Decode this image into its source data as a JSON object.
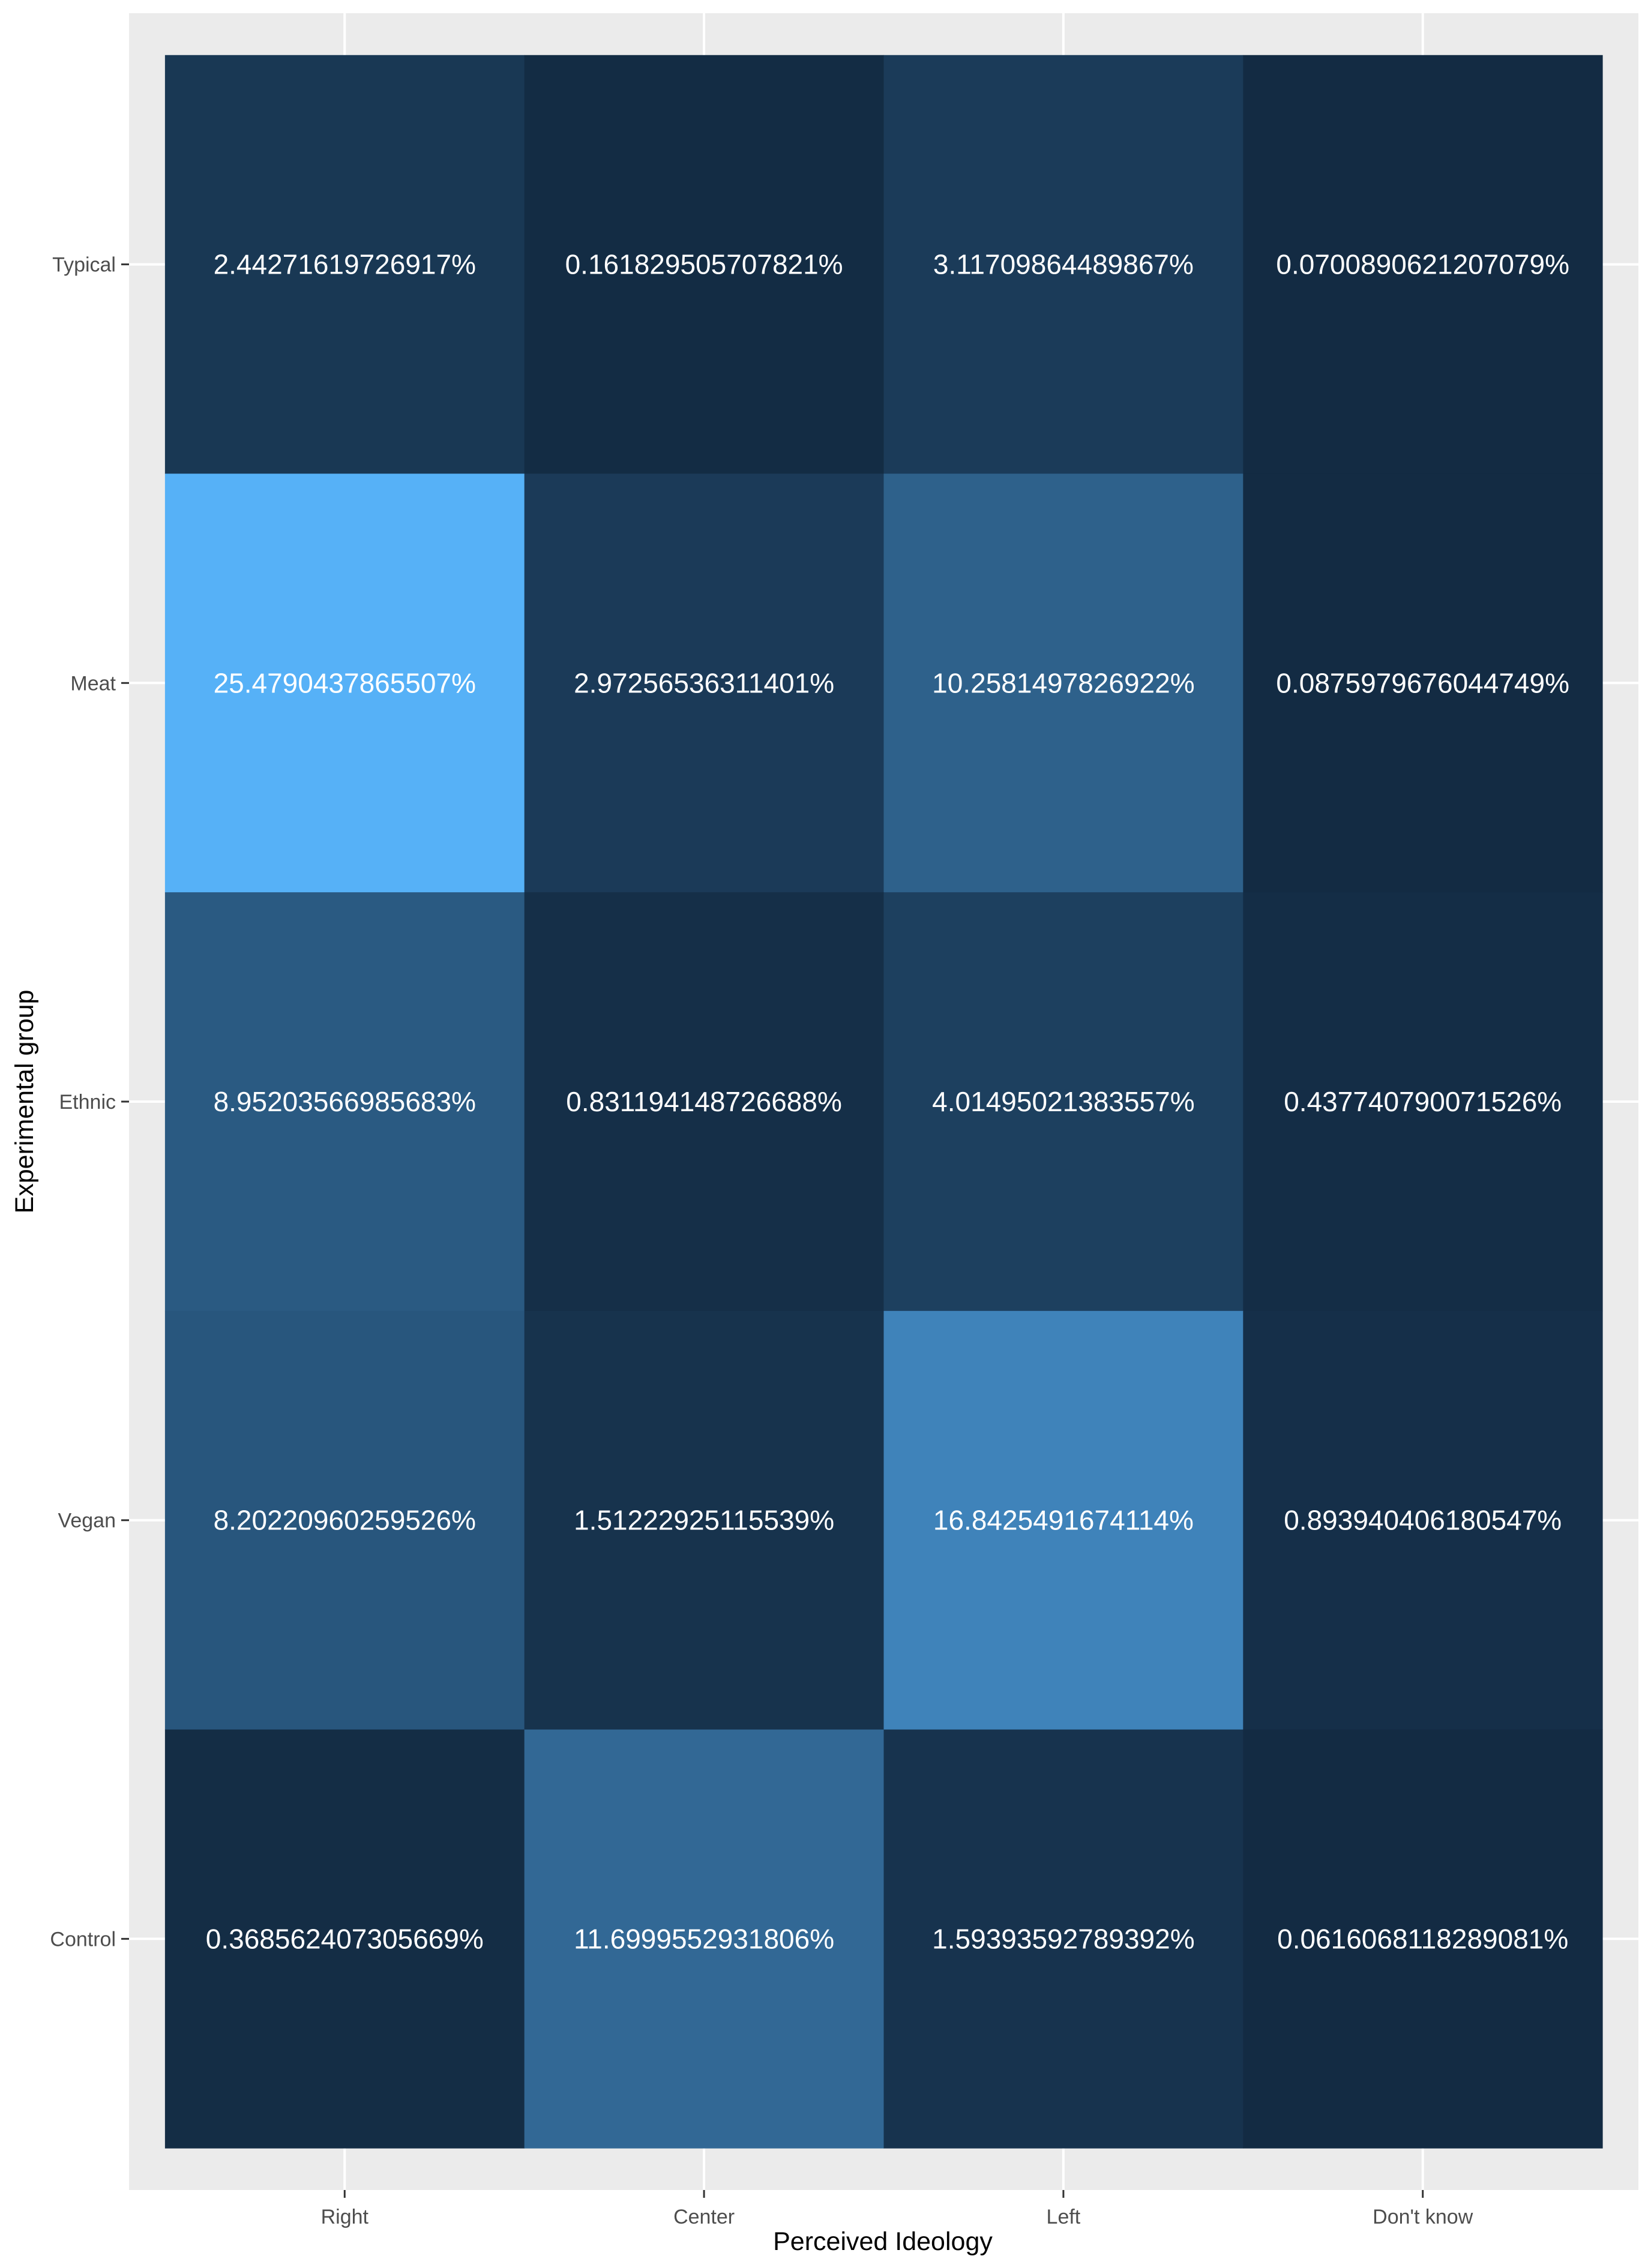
{
  "chart_data": {
    "type": "heatmap",
    "xlabel": "Perceived Ideology",
    "ylabel": "Experimental group",
    "x_categories": [
      "Right",
      "Center",
      "Left",
      "Don't know"
    ],
    "y_categories": [
      "Typical",
      "Meat",
      "Ethnic",
      "Vegan",
      "Control"
    ],
    "values": [
      [
        2.44271619726917,
        0.161829505707821,
        3.11709864489867,
        0.0700890621207079
      ],
      [
        25.4790437865507,
        2.97256536311401,
        10.2581497826922,
        0.0875979676044749
      ],
      [
        8.95203566985683,
        0.831194148726688,
        4.01495021383557,
        0.437740790071526
      ],
      [
        8.20220960259526,
        1.51222925115539,
        16.8425491674114,
        0.893940406180547
      ],
      [
        0.368562407305669,
        11.6999552931806,
        1.59393592789392,
        0.0616068118289081
      ]
    ],
    "labels": [
      [
        "2.44271619726917%",
        "0.161829505707821%",
        "3.11709864489867%",
        "0.0700890621207079%"
      ],
      [
        "25.4790437865507%",
        "2.97256536311401%",
        "10.2581497826922%",
        "0.0875979676044749%"
      ],
      [
        "8.95203566985683%",
        "0.831194148726688%",
        "4.01495021383557%",
        "0.437740790071526%"
      ],
      [
        "8.20220960259526%",
        "1.51222925115539%",
        "16.8425491674114%",
        "0.893940406180547%"
      ],
      [
        "0.368562407305669%",
        "11.6999552931806%",
        "1.59393592789392%",
        "0.0616068118289081%"
      ]
    ],
    "color_low": "#132b43",
    "color_high": "#56b1f7",
    "panel_background": "#ebebeb",
    "grid_color": "#ffffff",
    "legend": "none"
  }
}
